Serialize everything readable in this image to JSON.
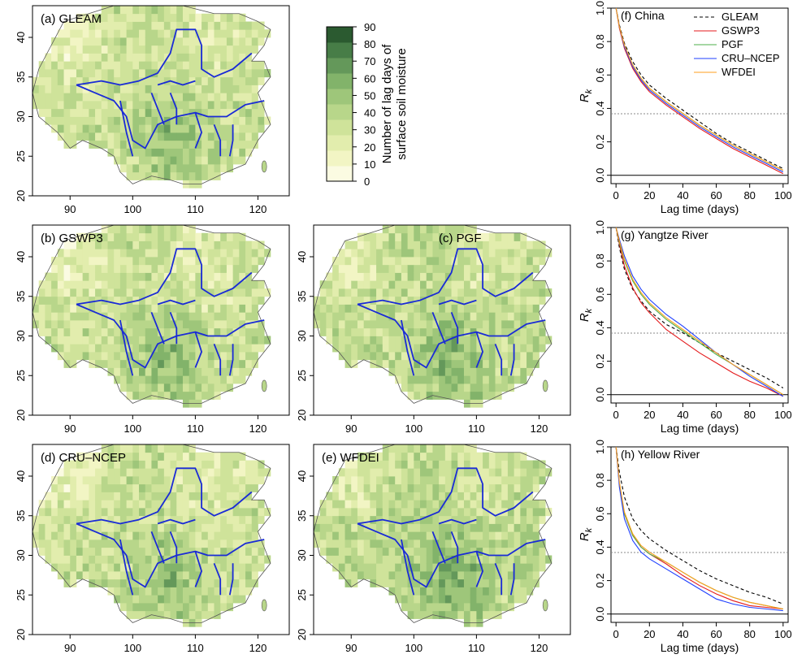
{
  "maps": {
    "lon_ticks": [
      "90",
      "100",
      "110",
      "120"
    ],
    "lat_ticks": [
      "20",
      "25",
      "30",
      "35",
      "40"
    ],
    "panels": [
      {
        "label": "(a) GLEAM"
      },
      {
        "label": "(b) GSWP3"
      },
      {
        "label": "(c) PGF"
      },
      {
        "label": "(d) CRU–NCEP"
      },
      {
        "label": "(e) WFDEI"
      }
    ]
  },
  "colorbar": {
    "title_line1": "Number of lag days of",
    "title_line2": "surface soil moisture",
    "ticks": [
      "0",
      "10",
      "20",
      "30",
      "40",
      "50",
      "60",
      "70",
      "80",
      "90"
    ],
    "colors": [
      "#fbfbe2",
      "#f2f5c4",
      "#e2edad",
      "#cfe39a",
      "#b8d68a",
      "#9ec67a",
      "#82b36a",
      "#64985a",
      "#477d47",
      "#2b5a30"
    ]
  },
  "chart_data": [
    {
      "type": "line",
      "title": "(f) China",
      "xlabel": "Lag time (days)",
      "ylabel": "R",
      "ylabel_sub": "k",
      "xlim": [
        0,
        100
      ],
      "ylim": [
        -0.05,
        1.0
      ],
      "xticks": [
        "0",
        "20",
        "40",
        "60",
        "80",
        "100"
      ],
      "yticks": [
        "0.0",
        "0.2",
        "0.4",
        "0.6",
        "0.8",
        "1.0"
      ],
      "hline": 0.368,
      "legend": "top-right",
      "x": [
        0,
        2,
        5,
        10,
        15,
        20,
        30,
        40,
        50,
        60,
        70,
        80,
        90,
        100
      ],
      "series": [
        {
          "name": "GLEAM",
          "color": "#000000",
          "dash": true,
          "values": [
            1.0,
            0.9,
            0.79,
            0.68,
            0.6,
            0.54,
            0.46,
            0.39,
            0.32,
            0.25,
            0.19,
            0.14,
            0.09,
            0.04
          ]
        },
        {
          "name": "GSWP3",
          "color": "#e41a1c",
          "dash": false,
          "values": [
            1.0,
            0.88,
            0.76,
            0.64,
            0.56,
            0.5,
            0.42,
            0.35,
            0.28,
            0.22,
            0.16,
            0.11,
            0.06,
            0.01
          ]
        },
        {
          "name": "PGF",
          "color": "#4daf4a",
          "dash": false,
          "values": [
            1.0,
            0.89,
            0.77,
            0.66,
            0.58,
            0.52,
            0.44,
            0.37,
            0.3,
            0.24,
            0.18,
            0.13,
            0.08,
            0.03
          ]
        },
        {
          "name": "CRU–NCEP",
          "color": "#1f3fff",
          "dash": false,
          "values": [
            1.0,
            0.89,
            0.77,
            0.65,
            0.57,
            0.51,
            0.43,
            0.36,
            0.29,
            0.23,
            0.17,
            0.12,
            0.07,
            0.02
          ]
        },
        {
          "name": "WFDEI",
          "color": "#ff9f1c",
          "dash": false,
          "values": [
            1.0,
            0.89,
            0.78,
            0.66,
            0.58,
            0.52,
            0.44,
            0.37,
            0.3,
            0.24,
            0.18,
            0.13,
            0.08,
            0.03
          ]
        }
      ]
    },
    {
      "type": "line",
      "title": "(g) Yangtze River",
      "xlabel": "Lag time (days)",
      "ylabel": "R",
      "ylabel_sub": "k",
      "xlim": [
        0,
        100
      ],
      "ylim": [
        -0.05,
        1.0
      ],
      "xticks": [
        "0",
        "20",
        "40",
        "60",
        "80",
        "100"
      ],
      "yticks": [
        "0.0",
        "0.2",
        "0.4",
        "0.6",
        "0.8",
        "1.0"
      ],
      "hline": 0.368,
      "x": [
        0,
        2,
        5,
        10,
        15,
        20,
        30,
        40,
        50,
        60,
        70,
        80,
        90,
        100
      ],
      "series": [
        {
          "name": "GLEAM",
          "color": "#000000",
          "dash": true,
          "values": [
            1.0,
            0.88,
            0.75,
            0.63,
            0.56,
            0.5,
            0.42,
            0.37,
            0.31,
            0.25,
            0.2,
            0.15,
            0.1,
            0.04
          ]
        },
        {
          "name": "GSWP3",
          "color": "#e41a1c",
          "dash": false,
          "values": [
            1.0,
            0.9,
            0.77,
            0.64,
            0.55,
            0.49,
            0.39,
            0.32,
            0.25,
            0.19,
            0.13,
            0.08,
            0.04,
            -0.01
          ]
        },
        {
          "name": "PGF",
          "color": "#4daf4a",
          "dash": false,
          "values": [
            1.0,
            0.91,
            0.8,
            0.68,
            0.6,
            0.54,
            0.45,
            0.38,
            0.31,
            0.24,
            0.18,
            0.12,
            0.06,
            0.0
          ]
        },
        {
          "name": "CRU–NCEP",
          "color": "#1f3fff",
          "dash": false,
          "values": [
            1.0,
            0.93,
            0.83,
            0.71,
            0.63,
            0.57,
            0.48,
            0.41,
            0.33,
            0.25,
            0.18,
            0.11,
            0.05,
            -0.01
          ]
        },
        {
          "name": "WFDEI",
          "color": "#ff9f1c",
          "dash": false,
          "values": [
            1.0,
            0.92,
            0.81,
            0.69,
            0.61,
            0.55,
            0.46,
            0.39,
            0.32,
            0.25,
            0.18,
            0.12,
            0.06,
            0.0
          ]
        }
      ]
    },
    {
      "type": "line",
      "title": "(h) Yellow River",
      "xlabel": "Lag time (days)",
      "ylabel": "R",
      "ylabel_sub": "k",
      "xlim": [
        0,
        100
      ],
      "ylim": [
        -0.05,
        1.0
      ],
      "xticks": [
        "0",
        "20",
        "40",
        "60",
        "80",
        "100"
      ],
      "yticks": [
        "0.0",
        "0.2",
        "0.4",
        "0.6",
        "0.8",
        "1.0"
      ],
      "hline": 0.368,
      "x": [
        0,
        2,
        5,
        10,
        15,
        20,
        30,
        40,
        50,
        60,
        70,
        80,
        90,
        100
      ],
      "series": [
        {
          "name": "GLEAM",
          "color": "#000000",
          "dash": true,
          "values": [
            1.0,
            0.85,
            0.7,
            0.57,
            0.5,
            0.45,
            0.38,
            0.32,
            0.26,
            0.21,
            0.17,
            0.13,
            0.1,
            0.06
          ]
        },
        {
          "name": "GSWP3",
          "color": "#e41a1c",
          "dash": false,
          "values": [
            1.0,
            0.78,
            0.6,
            0.47,
            0.4,
            0.36,
            0.3,
            0.23,
            0.17,
            0.12,
            0.08,
            0.05,
            0.04,
            0.03
          ]
        },
        {
          "name": "PGF",
          "color": "#4daf4a",
          "dash": false,
          "values": [
            1.0,
            0.78,
            0.6,
            0.47,
            0.4,
            0.36,
            0.31,
            0.25,
            0.19,
            0.14,
            0.1,
            0.07,
            0.05,
            0.03
          ]
        },
        {
          "name": "CRU–NCEP",
          "color": "#1f3fff",
          "dash": false,
          "values": [
            1.0,
            0.76,
            0.57,
            0.44,
            0.37,
            0.33,
            0.27,
            0.21,
            0.15,
            0.09,
            0.06,
            0.04,
            0.03,
            0.02
          ]
        },
        {
          "name": "WFDEI",
          "color": "#ff9f1c",
          "dash": false,
          "values": [
            1.0,
            0.79,
            0.61,
            0.48,
            0.41,
            0.37,
            0.31,
            0.25,
            0.19,
            0.14,
            0.1,
            0.07,
            0.05,
            0.03
          ]
        }
      ]
    }
  ]
}
